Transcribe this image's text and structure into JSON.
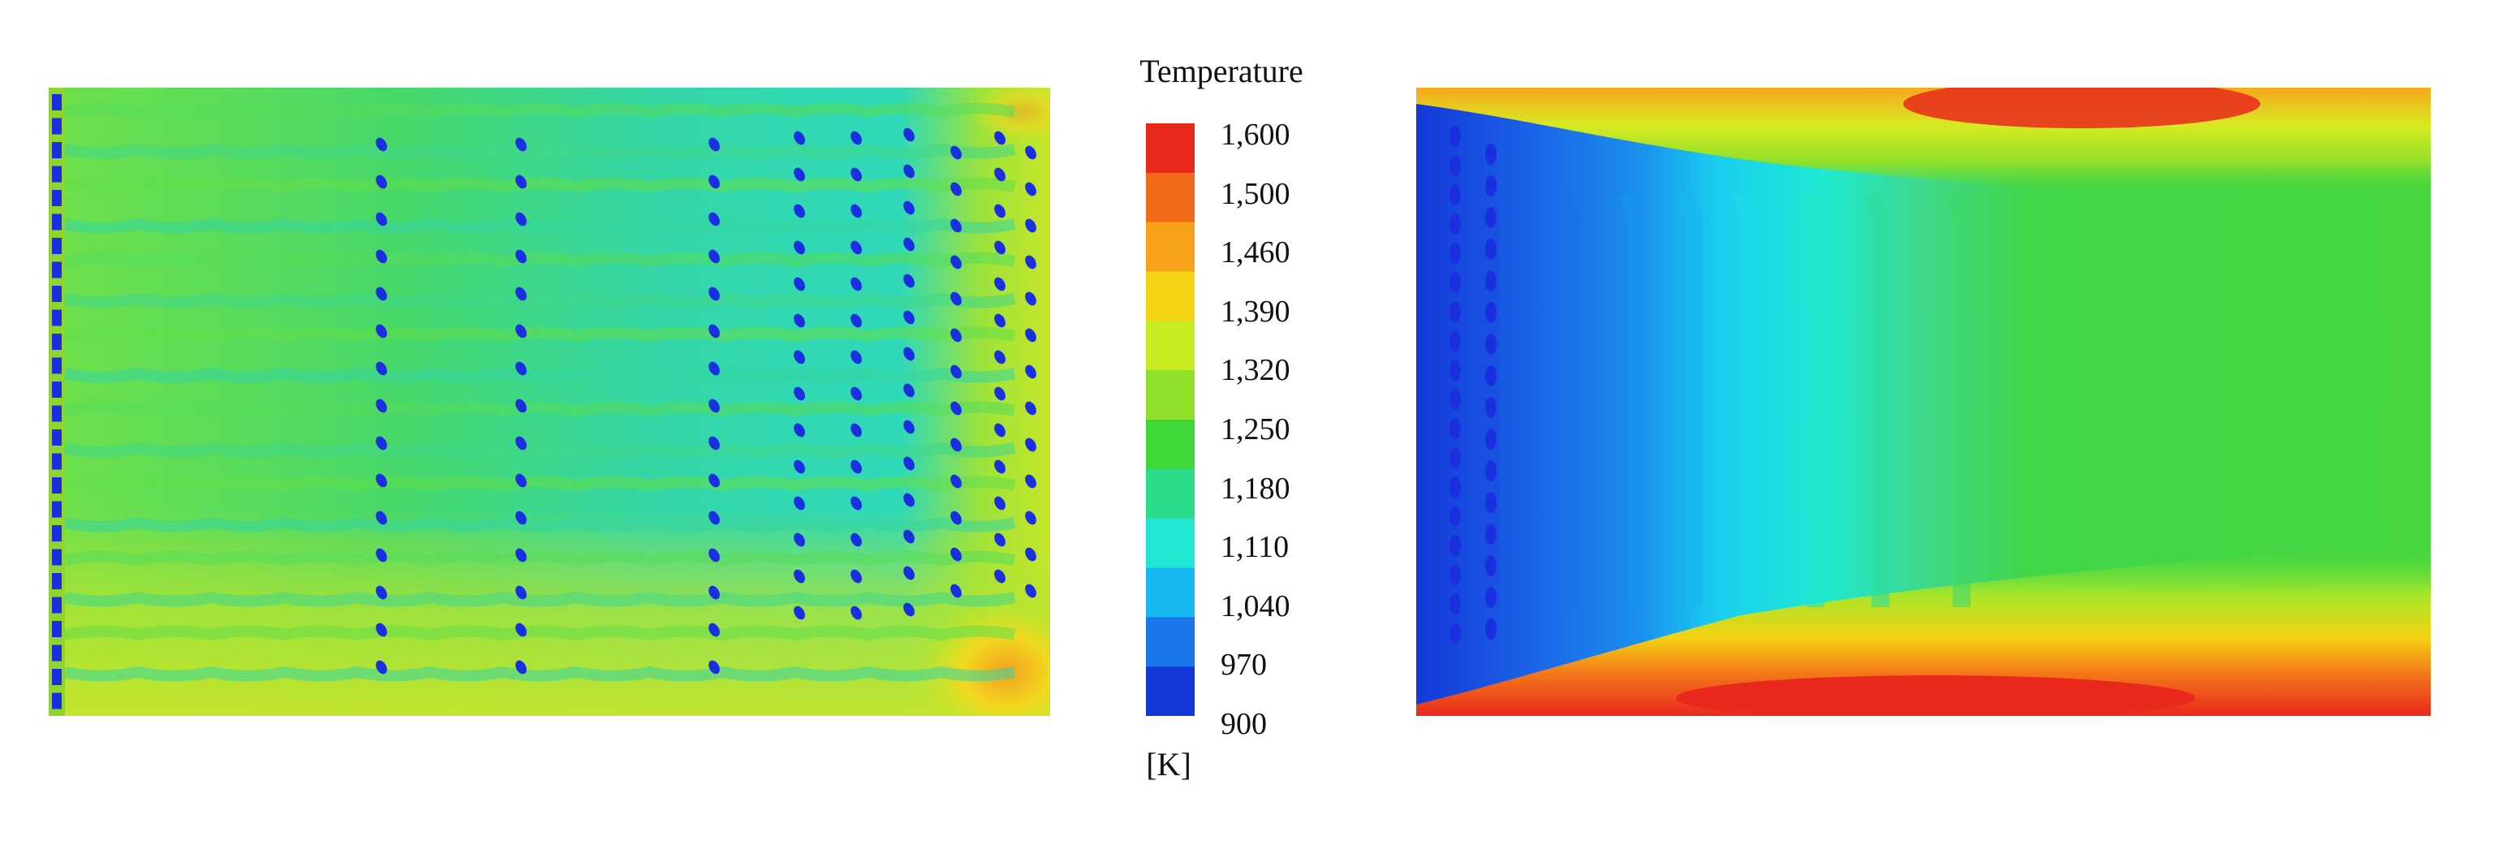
{
  "colorbar": {
    "title": "Temperature",
    "unit": "[K]",
    "ticks": [
      "1,600",
      "1,500",
      "1,460",
      "1,390",
      "1,320",
      "1,250",
      "1,180",
      "1,110",
      "1,040",
      "970",
      "900"
    ],
    "colors": [
      "#e8291c",
      "#f06a1a",
      "#f7a21a",
      "#f4d214",
      "#c8ec22",
      "#8ee02a",
      "#3fd63a",
      "#2ddc8a",
      "#1fe7d2",
      "#15b8f0",
      "#1a78ec",
      "#1438d8"
    ]
  },
  "panels": {
    "left": {
      "name": "temperature-field-left",
      "marker_color": "#1a2fe0"
    },
    "right": {
      "name": "temperature-field-right",
      "marker_color": "#1a2fe0"
    }
  }
}
